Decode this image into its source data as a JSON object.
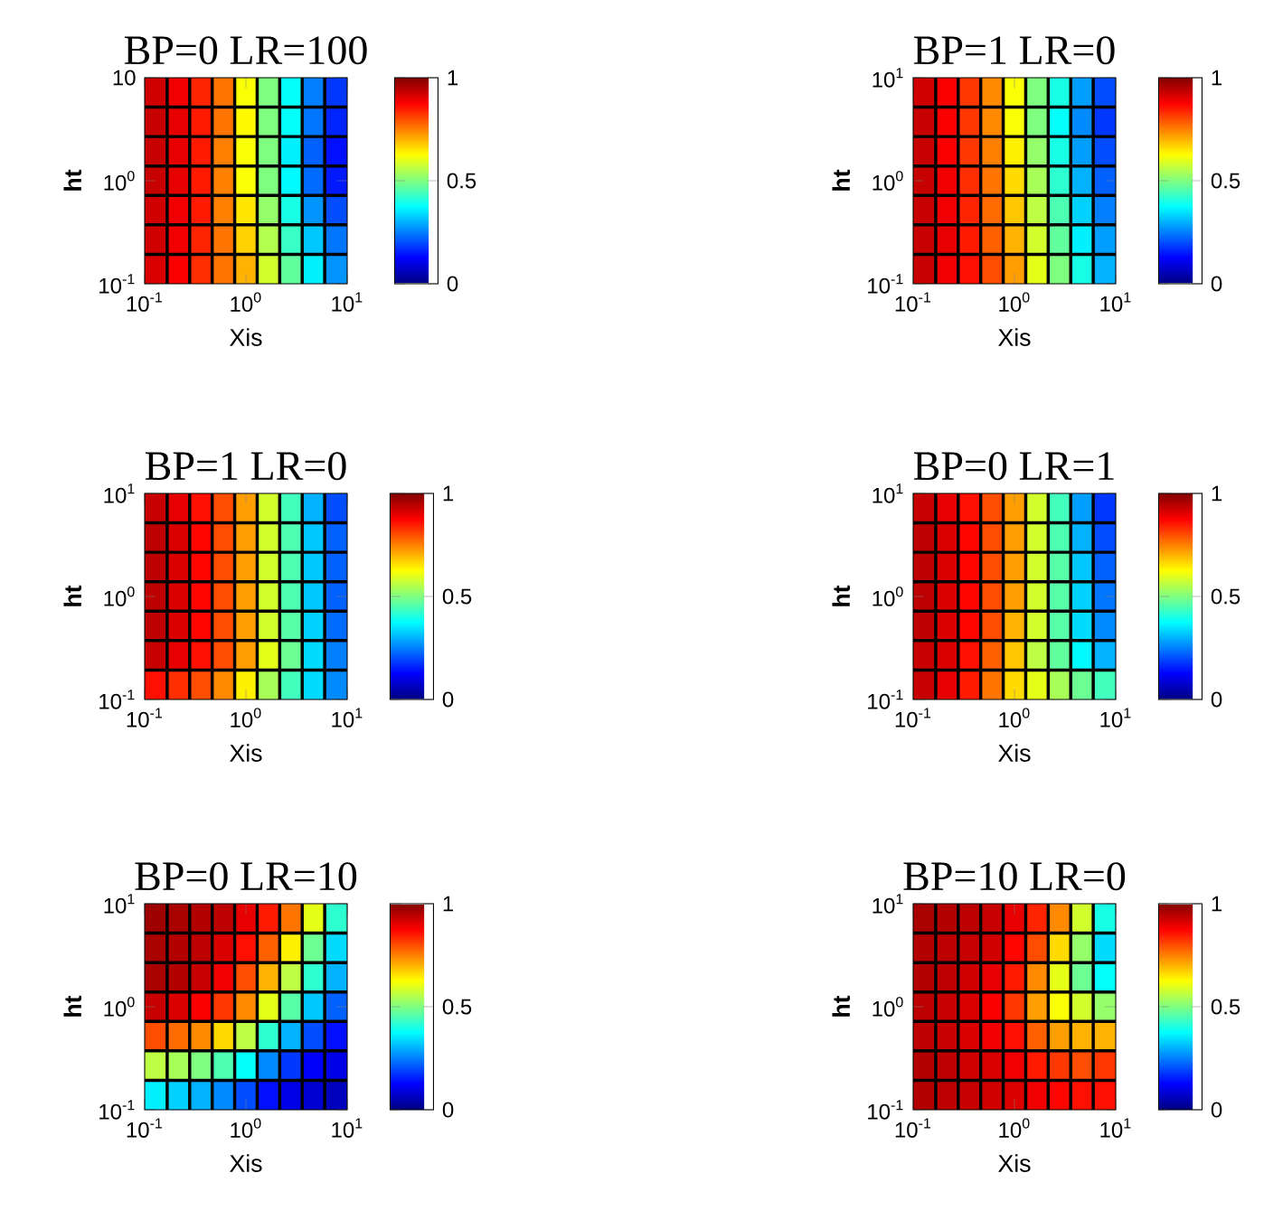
{
  "chart_data": [
    {
      "type": "heatmap",
      "title": "BP=0 LR=100",
      "xlabel": "Xis",
      "ylabel": "ht",
      "log": "xy",
      "xlim": [
        0.1,
        10
      ],
      "ylim": [
        0.1,
        10
      ],
      "xticks": [
        {
          "value": 0.1,
          "label": "10$^{-1}$"
        },
        {
          "value": 1,
          "label": "10$^{0}$"
        },
        {
          "value": 10,
          "label": "10$^{1}$"
        }
      ],
      "yticks": [
        {
          "value": 0.1,
          "label": "10$^{-1}$"
        },
        {
          "value": 1,
          "label": "10$^{0}$"
        },
        10
      ],
      "clim": [
        0,
        1
      ],
      "cticks": [
        0,
        0.5,
        1
      ],
      "cells": [
        [
          0.92,
          0.89,
          0.84,
          0.76,
          0.62,
          0.5,
          0.38,
          0.25,
          0.18
        ],
        [
          0.93,
          0.9,
          0.85,
          0.76,
          0.63,
          0.5,
          0.38,
          0.24,
          0.16
        ],
        [
          0.93,
          0.9,
          0.85,
          0.75,
          0.62,
          0.5,
          0.36,
          0.22,
          0.14
        ],
        [
          0.93,
          0.9,
          0.85,
          0.75,
          0.62,
          0.5,
          0.37,
          0.23,
          0.15
        ],
        [
          0.92,
          0.89,
          0.85,
          0.75,
          0.65,
          0.52,
          0.4,
          0.27,
          0.2
        ],
        [
          0.92,
          0.89,
          0.84,
          0.76,
          0.67,
          0.55,
          0.43,
          0.32,
          0.24
        ],
        [
          0.91,
          0.88,
          0.83,
          0.76,
          0.7,
          0.58,
          0.47,
          0.36,
          0.27
        ]
      ]
    },
    {
      "type": "heatmap",
      "title": "BP=1 LR=0",
      "xlabel": "Xis",
      "ylabel": "ht",
      "log": "xy",
      "xlim": [
        0.1,
        10
      ],
      "ylim": [
        0.1,
        10
      ],
      "xticks": [
        {
          "value": 0.1,
          "label": "10$^{-1}$"
        },
        {
          "value": 1,
          "label": "10$^{0}$"
        },
        {
          "value": 10,
          "label": "10$^{1}$"
        }
      ],
      "yticks": [
        {
          "value": 0.1,
          "label": "10$^{-1}$"
        },
        {
          "value": 1,
          "label": "10$^{0}$"
        },
        {
          "value": 10,
          "label": "10$^{1}$"
        }
      ],
      "clim": [
        0,
        1
      ],
      "cticks": [
        0,
        0.5,
        1
      ],
      "cells": [
        [
          0.92,
          0.88,
          0.82,
          0.74,
          0.62,
          0.5,
          0.4,
          0.28,
          0.2
        ],
        [
          0.93,
          0.88,
          0.82,
          0.74,
          0.62,
          0.5,
          0.38,
          0.26,
          0.18
        ],
        [
          0.93,
          0.88,
          0.82,
          0.75,
          0.64,
          0.52,
          0.4,
          0.28,
          0.2
        ],
        [
          0.93,
          0.89,
          0.83,
          0.76,
          0.66,
          0.54,
          0.42,
          0.3,
          0.22
        ],
        [
          0.93,
          0.89,
          0.84,
          0.77,
          0.68,
          0.56,
          0.45,
          0.33,
          0.25
        ],
        [
          0.93,
          0.9,
          0.85,
          0.78,
          0.7,
          0.58,
          0.47,
          0.36,
          0.28
        ],
        [
          0.93,
          0.89,
          0.86,
          0.8,
          0.72,
          0.6,
          0.5,
          0.4,
          0.3
        ]
      ]
    },
    {
      "type": "heatmap",
      "title": "BP=1 LR=0",
      "xlabel": "Xis",
      "ylabel": "ht",
      "log": "xy",
      "xlim": [
        0.1,
        10
      ],
      "ylim": [
        0.1,
        10
      ],
      "xticks": [
        {
          "value": 0.1,
          "label": "10$^{-1}$"
        },
        {
          "value": 1,
          "label": "10$^{0}$"
        },
        {
          "value": 10,
          "label": "10$^{1}$"
        }
      ],
      "yticks": [
        {
          "value": 0.1,
          "label": "10$^{-1}$"
        },
        {
          "value": 1,
          "label": "10$^{0}$"
        },
        {
          "value": 10,
          "label": "10$^{1}$"
        }
      ],
      "clim": [
        0,
        1
      ],
      "cticks": [
        0,
        0.5,
        1
      ],
      "cells": [
        [
          0.93,
          0.9,
          0.86,
          0.8,
          0.72,
          0.58,
          0.44,
          0.3,
          0.2
        ],
        [
          0.94,
          0.91,
          0.87,
          0.8,
          0.72,
          0.58,
          0.45,
          0.32,
          0.22
        ],
        [
          0.94,
          0.91,
          0.87,
          0.8,
          0.72,
          0.58,
          0.45,
          0.32,
          0.22
        ],
        [
          0.94,
          0.91,
          0.87,
          0.8,
          0.72,
          0.58,
          0.45,
          0.32,
          0.22
        ],
        [
          0.94,
          0.91,
          0.87,
          0.8,
          0.72,
          0.58,
          0.46,
          0.33,
          0.23
        ],
        [
          0.93,
          0.9,
          0.86,
          0.8,
          0.72,
          0.6,
          0.48,
          0.34,
          0.25
        ],
        [
          0.86,
          0.83,
          0.8,
          0.74,
          0.64,
          0.54,
          0.44,
          0.34,
          0.26
        ]
      ]
    },
    {
      "type": "heatmap",
      "title": "BP=0 LR=1",
      "xlabel": "Xis",
      "ylabel": "ht",
      "log": "xy",
      "xlim": [
        0.1,
        10
      ],
      "ylim": [
        0.1,
        10
      ],
      "xticks": [
        {
          "value": 0.1,
          "label": "10$^{-1}$"
        },
        {
          "value": 1,
          "label": "10$^{0}$"
        },
        {
          "value": 10,
          "label": "10$^{1}$"
        }
      ],
      "yticks": [
        {
          "value": 0.1,
          "label": "10$^{-1}$"
        },
        {
          "value": 1,
          "label": "10$^{0}$"
        },
        {
          "value": 10,
          "label": "10$^{1}$"
        }
      ],
      "clim": [
        0,
        1
      ],
      "cticks": [
        0,
        0.5,
        1
      ],
      "cells": [
        [
          0.93,
          0.9,
          0.86,
          0.8,
          0.72,
          0.58,
          0.44,
          0.28,
          0.18
        ],
        [
          0.94,
          0.91,
          0.87,
          0.8,
          0.72,
          0.58,
          0.45,
          0.3,
          0.2
        ],
        [
          0.94,
          0.91,
          0.87,
          0.8,
          0.72,
          0.58,
          0.46,
          0.32,
          0.22
        ],
        [
          0.94,
          0.91,
          0.87,
          0.8,
          0.72,
          0.58,
          0.46,
          0.33,
          0.24
        ],
        [
          0.94,
          0.91,
          0.87,
          0.8,
          0.7,
          0.58,
          0.46,
          0.34,
          0.26
        ],
        [
          0.93,
          0.91,
          0.86,
          0.78,
          0.68,
          0.56,
          0.47,
          0.37,
          0.3
        ],
        [
          0.93,
          0.9,
          0.85,
          0.76,
          0.66,
          0.6,
          0.54,
          0.48,
          0.44
        ]
      ]
    },
    {
      "type": "heatmap",
      "title": "BP=0 LR=10",
      "xlabel": "Xis",
      "ylabel": "ht",
      "log": "xy",
      "xlim": [
        0.1,
        10
      ],
      "ylim": [
        0.1,
        10
      ],
      "xticks": [
        {
          "value": 0.1,
          "label": "10$^{-1}$"
        },
        {
          "value": 1,
          "label": "10$^{0}$"
        },
        {
          "value": 10,
          "label": "10$^{1}$"
        }
      ],
      "yticks": [
        {
          "value": 0.1,
          "label": "10$^{-1}$"
        },
        {
          "value": 1,
          "label": "10$^{0}$"
        },
        {
          "value": 10,
          "label": "10$^{1}$"
        }
      ],
      "clim": [
        0,
        1
      ],
      "cticks": [
        0,
        0.5,
        1
      ],
      "cells": [
        [
          0.97,
          0.96,
          0.95,
          0.94,
          0.9,
          0.85,
          0.76,
          0.6,
          0.42
        ],
        [
          0.96,
          0.95,
          0.94,
          0.91,
          0.86,
          0.78,
          0.64,
          0.48,
          0.34
        ],
        [
          0.96,
          0.95,
          0.93,
          0.89,
          0.8,
          0.7,
          0.56,
          0.42,
          0.3
        ],
        [
          0.93,
          0.91,
          0.88,
          0.82,
          0.74,
          0.6,
          0.46,
          0.32,
          0.22
        ],
        [
          0.8,
          0.77,
          0.74,
          0.66,
          0.56,
          0.42,
          0.3,
          0.2,
          0.14
        ],
        [
          0.56,
          0.54,
          0.5,
          0.45,
          0.38,
          0.26,
          0.18,
          0.12,
          0.1
        ],
        [
          0.36,
          0.33,
          0.3,
          0.26,
          0.2,
          0.14,
          0.1,
          0.08,
          0.06
        ]
      ]
    },
    {
      "type": "heatmap",
      "title": "BP=10 LR=0",
      "xlabel": "Xis",
      "ylabel": "ht",
      "log": "xy",
      "xlim": [
        0.1,
        10
      ],
      "ylim": [
        0.1,
        10
      ],
      "xticks": [
        {
          "value": 0.1,
          "label": "10$^{-1}$"
        },
        {
          "value": 1,
          "label": "10$^{0}$"
        },
        {
          "value": 10,
          "label": "10$^{1}$"
        }
      ],
      "yticks": [
        {
          "value": 0.1,
          "label": "10$^{-1}$"
        },
        {
          "value": 1,
          "label": "10$^{0}$"
        },
        {
          "value": 10,
          "label": "10$^{1}$"
        }
      ],
      "clim": [
        0,
        1
      ],
      "cticks": [
        0,
        0.5,
        1
      ],
      "cells": [
        [
          0.96,
          0.95,
          0.94,
          0.93,
          0.9,
          0.84,
          0.74,
          0.58,
          0.4
        ],
        [
          0.95,
          0.94,
          0.93,
          0.92,
          0.87,
          0.8,
          0.66,
          0.52,
          0.34
        ],
        [
          0.95,
          0.94,
          0.92,
          0.9,
          0.85,
          0.74,
          0.6,
          0.48,
          0.38
        ],
        [
          0.94,
          0.93,
          0.91,
          0.88,
          0.82,
          0.72,
          0.62,
          0.58,
          0.52
        ],
        [
          0.94,
          0.93,
          0.91,
          0.89,
          0.86,
          0.78,
          0.72,
          0.7,
          0.7
        ],
        [
          0.95,
          0.94,
          0.92,
          0.91,
          0.89,
          0.85,
          0.82,
          0.8,
          0.82
        ],
        [
          0.95,
          0.94,
          0.93,
          0.92,
          0.91,
          0.89,
          0.87,
          0.86,
          0.86
        ]
      ]
    }
  ]
}
